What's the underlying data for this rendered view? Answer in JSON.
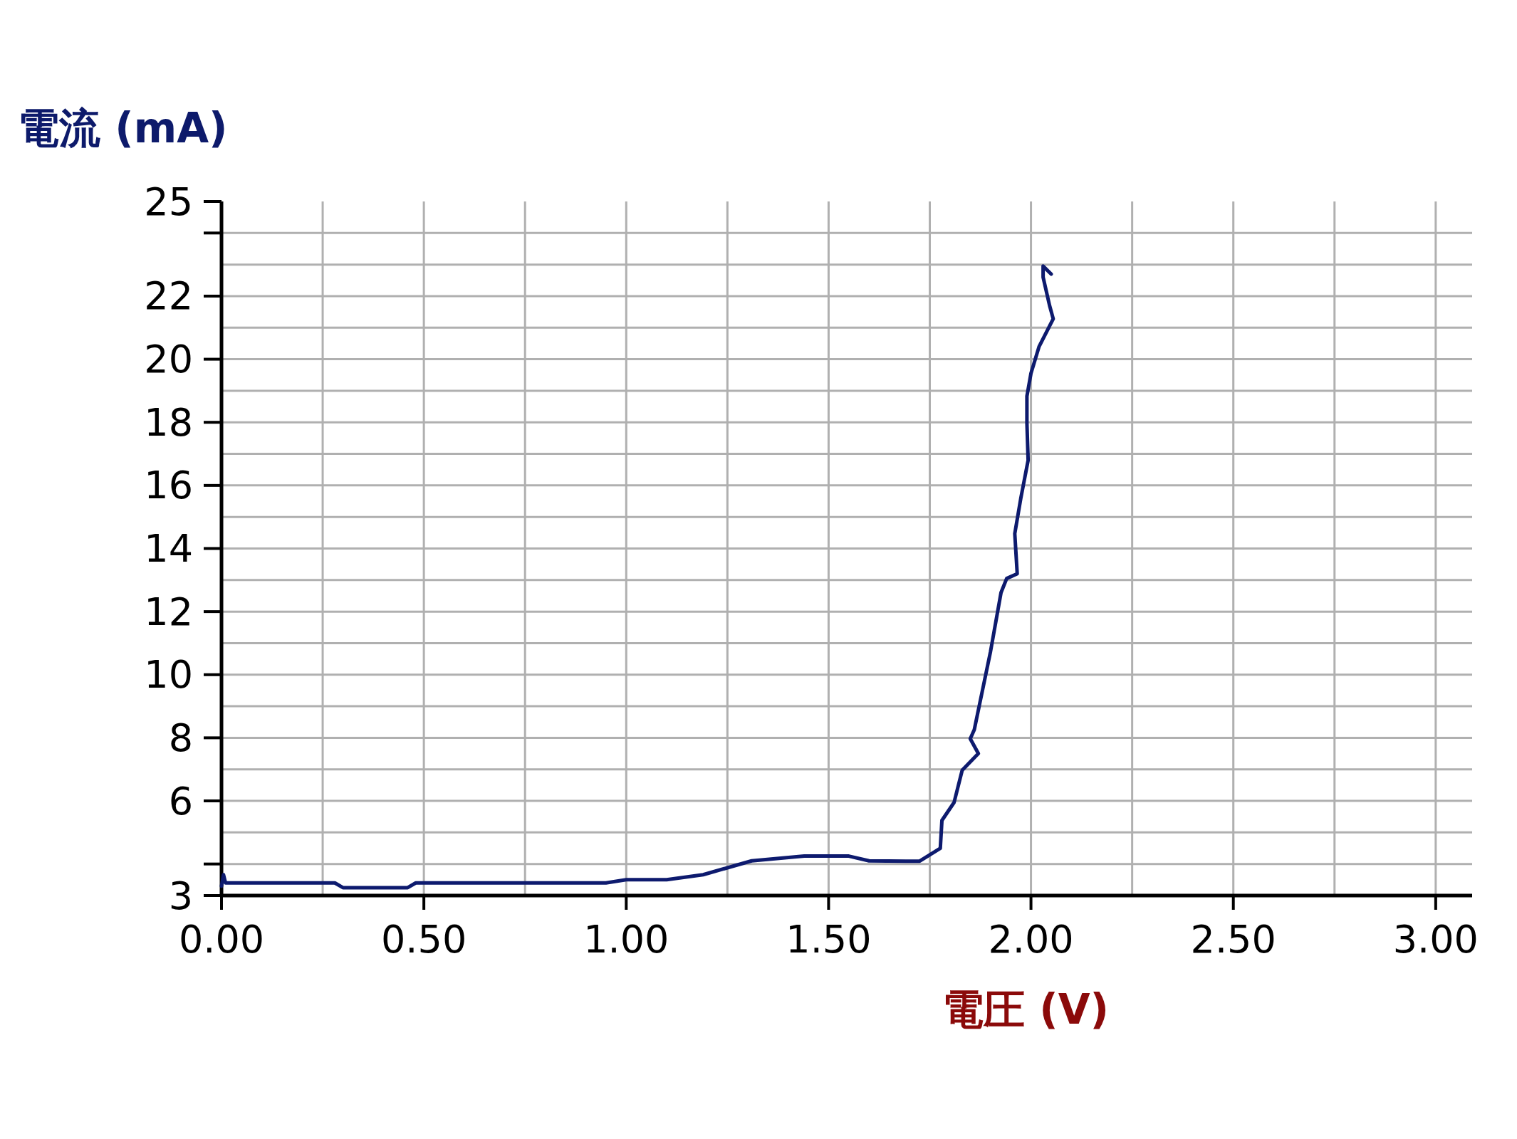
{
  "chart_data": {
    "type": "line",
    "xlabel": "電圧 (V)",
    "ylabel": "電流 (mA)",
    "xlim": [
      0,
      3.09
    ],
    "ylim": [
      3,
      25
    ],
    "xticks": [
      {
        "value": 0,
        "label": "0.00"
      },
      {
        "value": 0.25,
        "label": null
      },
      {
        "value": 0.5,
        "label": "0.50"
      },
      {
        "value": 0.75,
        "label": null
      },
      {
        "value": 1,
        "label": "1.00"
      },
      {
        "value": 1.25,
        "label": null
      },
      {
        "value": 1.5,
        "label": "1.50"
      },
      {
        "value": 1.75,
        "label": null
      },
      {
        "value": 2,
        "label": "2.00"
      },
      {
        "value": 2.25,
        "label": null
      },
      {
        "value": 2.5,
        "label": "2.50"
      },
      {
        "value": 2.75,
        "label": null
      },
      {
        "value": 3,
        "label": "3.00"
      }
    ],
    "yticks": [
      3,
      {
        "value": 4,
        "label": null
      },
      {
        "value": 5,
        "label": null
      },
      6,
      {
        "value": 7,
        "label": null
      },
      8,
      {
        "value": 9,
        "label": null
      },
      10,
      {
        "value": 11,
        "label": null
      },
      12,
      {
        "value": 13,
        "label": null
      },
      14,
      {
        "value": 15,
        "label": null
      },
      16,
      {
        "value": 17,
        "label": null
      },
      18,
      {
        "value": 19,
        "label": null
      },
      20,
      {
        "value": 21,
        "label": null
      },
      22,
      {
        "value": 23,
        "label": null
      },
      {
        "value": 24,
        "label": null
      },
      25
    ],
    "grid": true,
    "line_style": "solid",
    "series": [
      {
        "color": "#0d1a6e",
        "x": [
          0,
          0.005,
          0.01,
          0.28,
          0.3,
          0.46,
          0.48,
          0.95,
          1.0,
          1.1,
          1.19,
          1.25,
          1.31,
          1.44,
          1.55,
          1.6,
          1.7,
          1.725,
          1.776,
          1.78,
          1.81,
          1.83,
          1.87,
          1.85,
          1.86,
          1.9,
          1.926,
          1.94,
          1.966,
          1.96,
          1.975,
          1.993,
          1.99,
          1.99,
          2.0,
          2.02,
          2.055,
          2.046,
          2.03,
          2.03,
          2.05
        ],
        "values": [
          3.3,
          3.66,
          3.4,
          3.4,
          3.25,
          3.25,
          3.4,
          3.4,
          3.5,
          3.5,
          3.66,
          3.88,
          4.1,
          4.25,
          4.25,
          4.1,
          4.09,
          4.09,
          4.5,
          5.38,
          5.95,
          6.97,
          7.5,
          7.97,
          8.26,
          10.73,
          12.6,
          13.05,
          13.2,
          14.47,
          15.6,
          16.8,
          17.97,
          18.83,
          19.55,
          20.4,
          21.28,
          21.7,
          22.6,
          22.95,
          22.7
        ]
      }
    ]
  }
}
